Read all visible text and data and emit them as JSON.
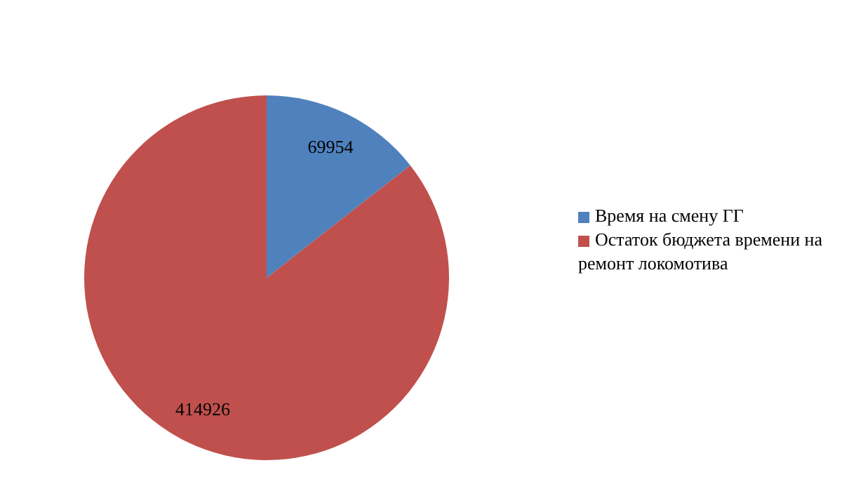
{
  "chart_data": {
    "type": "pie",
    "categories": [
      "Время на смену ГГ",
      "Остаток бюджета времени на ремонт локомотива"
    ],
    "values": [
      69954,
      414926
    ],
    "colors": [
      "#4f81bd",
      "#c0504d"
    ],
    "data_labels": true,
    "legend": "right"
  }
}
